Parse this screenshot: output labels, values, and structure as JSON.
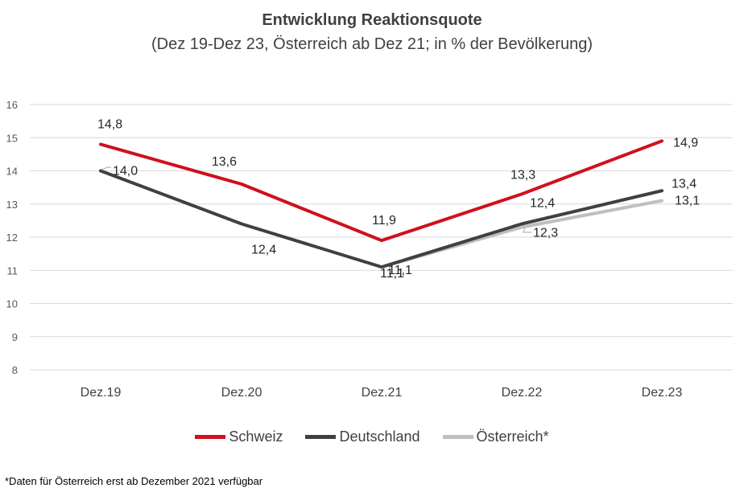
{
  "chart_data": {
    "type": "line",
    "title": "Entwicklung Reaktionsquote",
    "subtitle": "(Dez 19-Dez 23, Österreich ab Dez 21; in % der Bevölkerung)",
    "categories": [
      "Dez.19",
      "Dez.20",
      "Dez.21",
      "Dez.22",
      "Dez.23"
    ],
    "ylim": [
      8,
      16
    ],
    "yticks": [
      "8",
      "9",
      "10",
      "11",
      "12",
      "13",
      "14",
      "15",
      "16"
    ],
    "grid": true,
    "legend_position": "bottom",
    "series": [
      {
        "name": "Schweiz",
        "color": "#D0101E",
        "values": [
          14.8,
          13.6,
          11.9,
          13.3,
          14.9
        ],
        "labels": [
          "14,8",
          "13,6",
          "11,9",
          "13,3",
          "14,9"
        ]
      },
      {
        "name": "Deutschland",
        "color": "#404040",
        "values": [
          14.0,
          12.4,
          11.1,
          12.4,
          13.4
        ],
        "labels": [
          "14,0",
          "12,4",
          "11,1",
          "12,4",
          "13,4"
        ]
      },
      {
        "name": "Österreich*",
        "color": "#BFBFBF",
        "values": [
          null,
          null,
          11.1,
          12.3,
          13.1
        ],
        "labels": [
          null,
          null,
          "11,1",
          "12,3",
          "13,1"
        ]
      }
    ]
  },
  "footnote": "*Daten für Österreich erst ab Dezember 2021 verfügbar"
}
